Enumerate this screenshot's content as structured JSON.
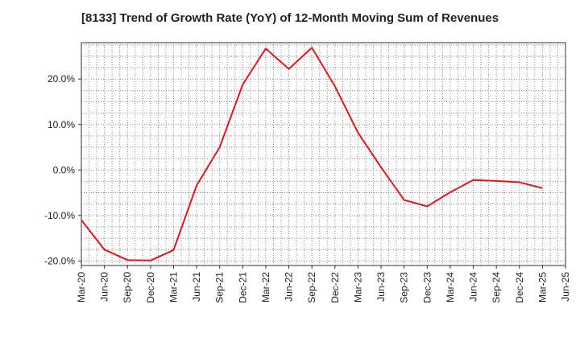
{
  "chart_data": {
    "type": "line",
    "title": "[8133]  Trend of Growth Rate (YoY) of 12-Month Moving Sum of Revenues",
    "xlabel": "",
    "ylabel": "",
    "ylim": [
      -21,
      28
    ],
    "yticks": [
      20,
      10,
      0,
      -10,
      -20
    ],
    "ytick_labels": [
      "20.0%",
      "10.0%",
      "0.0%",
      "-10.0%",
      "-20.0%"
    ],
    "x_tick_labels": [
      "Mar-20",
      "Jun-20",
      "Sep-20",
      "Dec-20",
      "Mar-21",
      "Jun-21",
      "Sep-21",
      "Dec-21",
      "Mar-22",
      "Jun-22",
      "Sep-22",
      "Dec-22",
      "Mar-23",
      "Jun-23",
      "Sep-23",
      "Dec-23",
      "Mar-24",
      "Jun-24",
      "Sep-24",
      "Dec-24",
      "Mar-25",
      "Jun-25"
    ],
    "grid": true,
    "legend": "none",
    "series": [
      {
        "color": "#e8141b",
        "x": [
          "Mar-20",
          "Jun-20",
          "Sep-20",
          "Dec-20",
          "Mar-21",
          "Jun-21",
          "Sep-21",
          "Dec-21",
          "Mar-22",
          "Jun-22",
          "Sep-22",
          "Dec-22",
          "Mar-23",
          "Jun-23",
          "Sep-23",
          "Dec-23",
          "Mar-24",
          "Jun-24",
          "Sep-24",
          "Dec-24",
          "Mar-25"
        ],
        "values": [
          -11.0,
          -17.5,
          -19.8,
          -19.9,
          -17.6,
          -3.4,
          5.0,
          18.8,
          26.7,
          22.2,
          26.9,
          18.4,
          8.2,
          0.6,
          -6.6,
          -8.0,
          -4.9,
          -2.2,
          -2.4,
          -2.7,
          -4.0
        ]
      }
    ]
  }
}
